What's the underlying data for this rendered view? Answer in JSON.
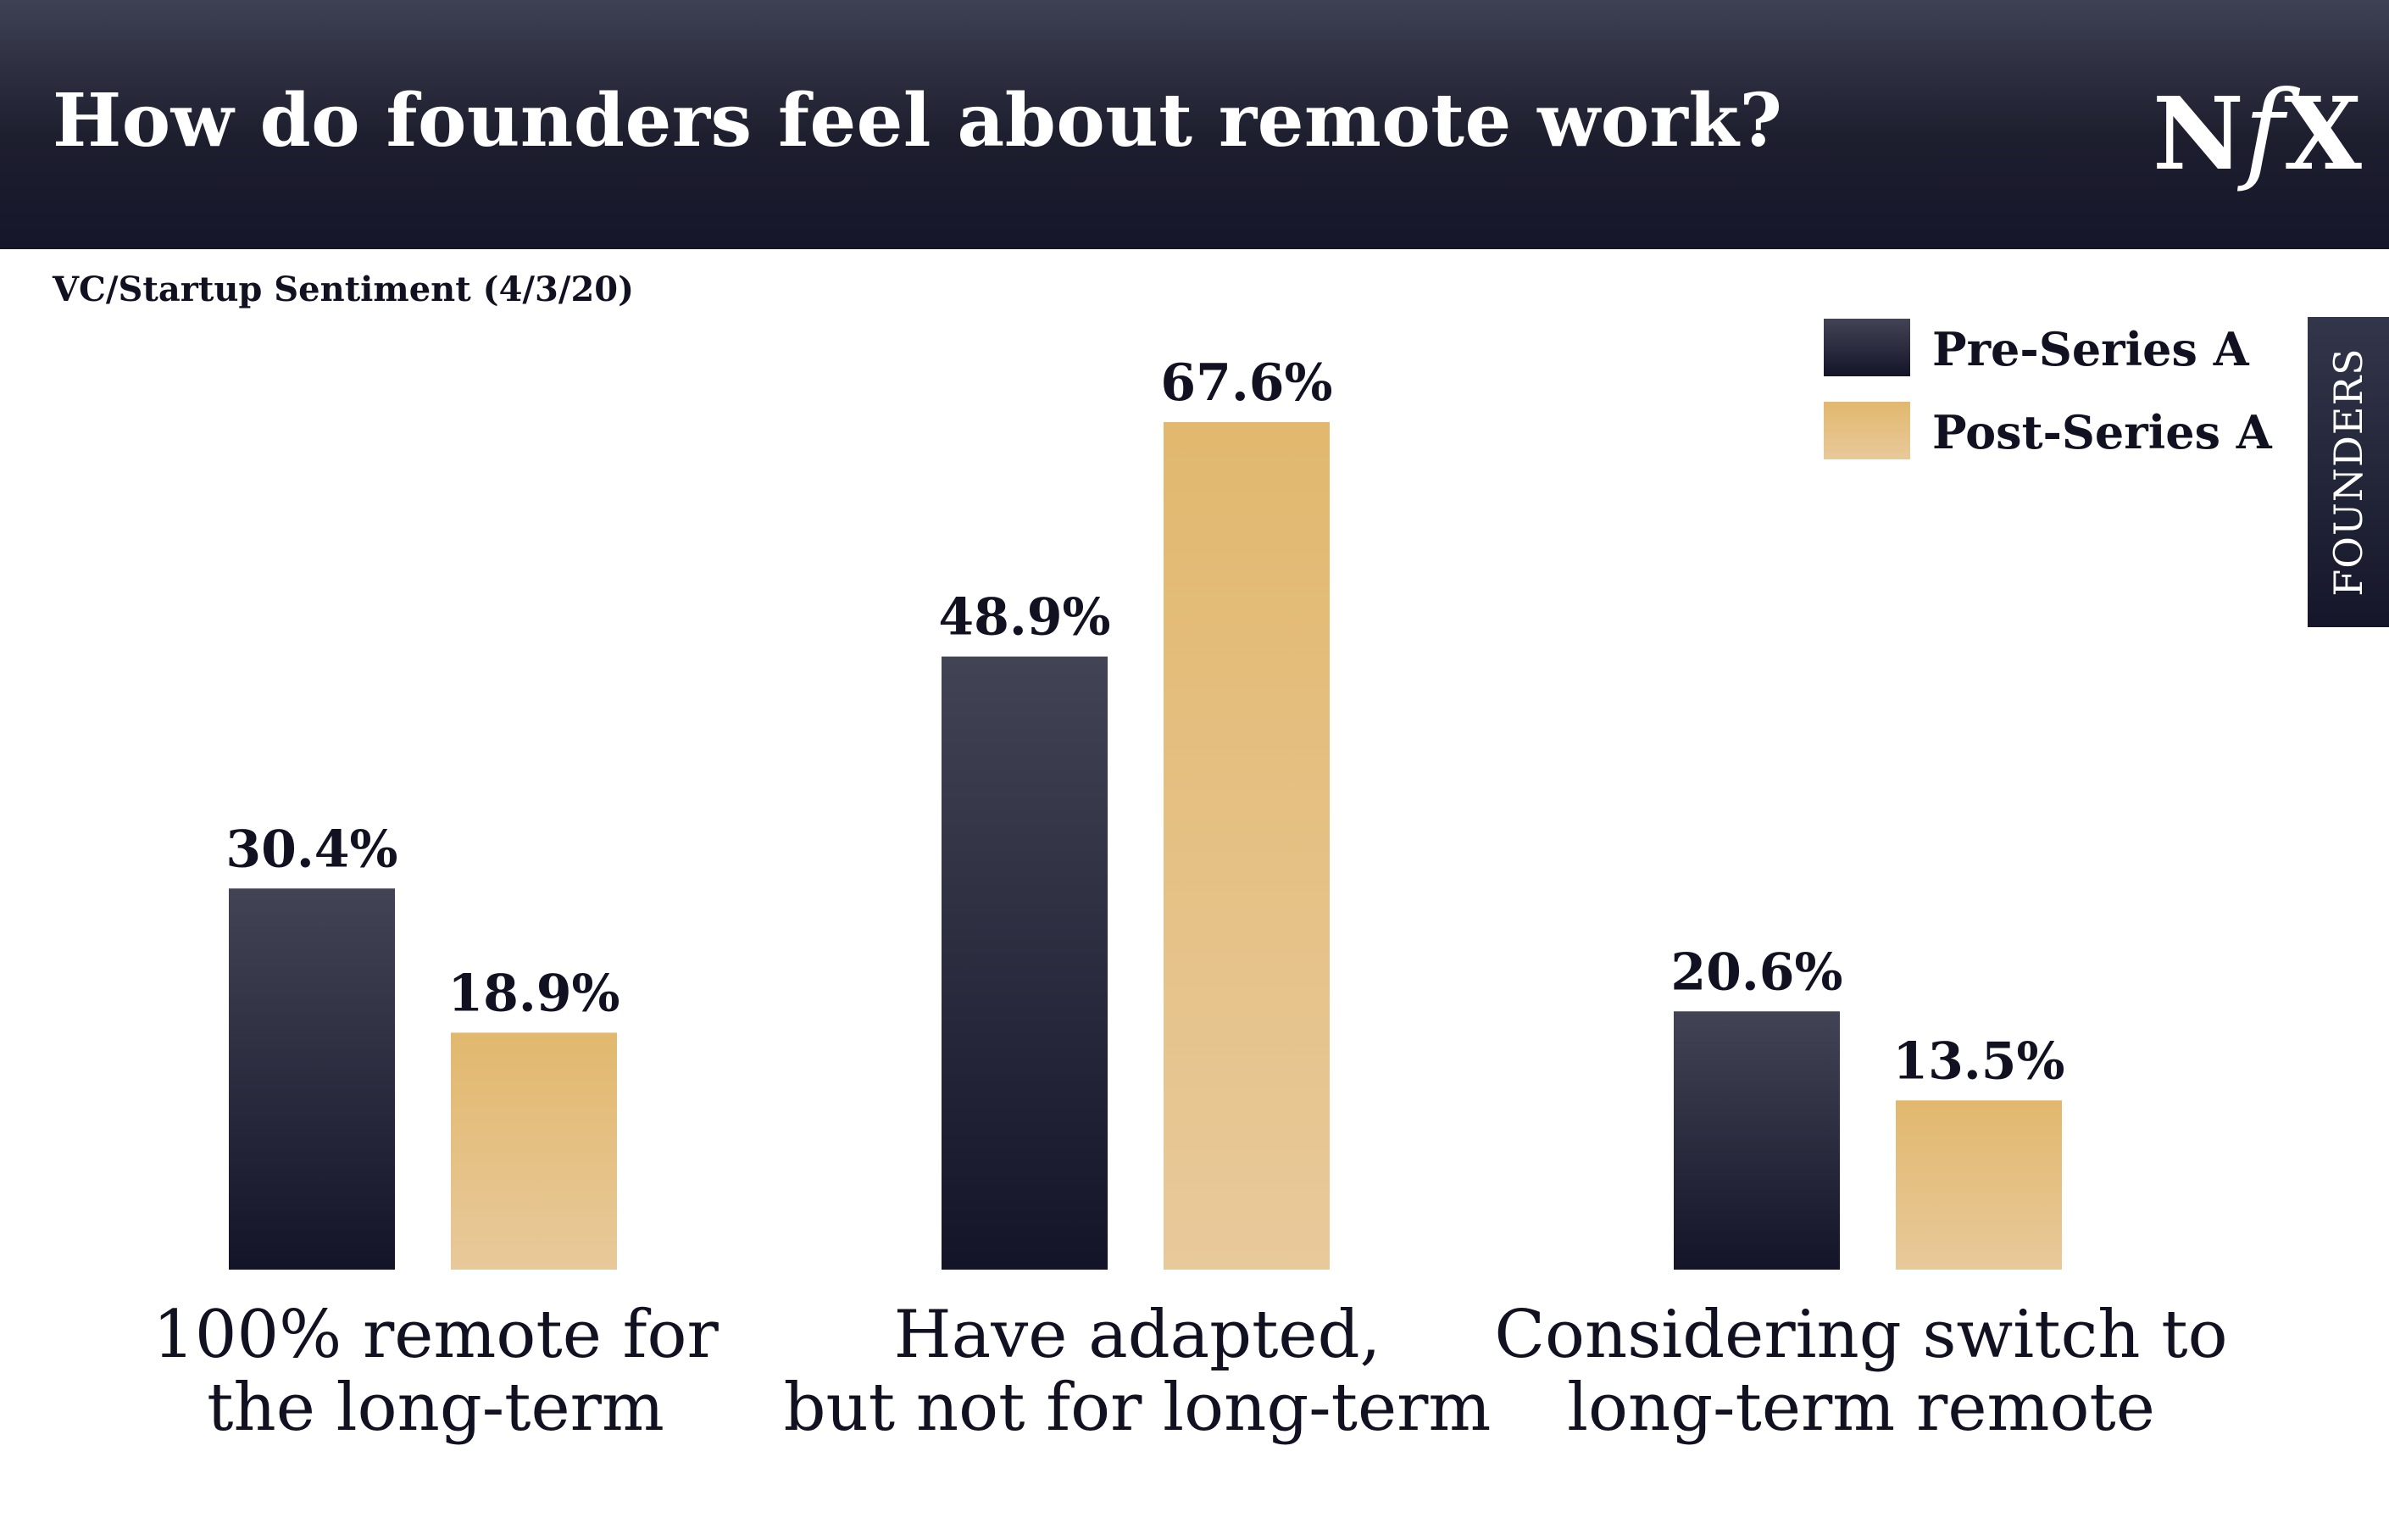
{
  "header": {
    "title": "How do founders feel about remote work?",
    "logo_text_left": "N",
    "logo_text_mid": "f",
    "logo_text_right": "X"
  },
  "subtitle": "VC/Startup Sentiment (4/3/20)",
  "side_tab": "FOUNDERS",
  "colors": {
    "pre_series_a_top": "#424455",
    "pre_series_a_bottom": "#141428",
    "post_series_a_top": "#e2b86e",
    "post_series_a_bottom": "#e8c99a",
    "header": "#1d1e2e"
  },
  "legend": [
    {
      "label": "Pre-Series A"
    },
    {
      "label": "Post-Series A"
    }
  ],
  "categories": [
    {
      "line1": "100% remote for",
      "line2": "the long-term"
    },
    {
      "line1": "Have adapted,",
      "line2": "but not for long-term"
    },
    {
      "line1": "Considering switch to",
      "line2": "long-term remote"
    }
  ],
  "chart_data": {
    "type": "bar",
    "title": "How do founders feel about remote work?",
    "subtitle": "VC/Startup Sentiment (4/3/20)",
    "categories": [
      "100% remote for the long-term",
      "Have adapted, but not for long-term",
      "Considering switch to long-term remote"
    ],
    "series": [
      {
        "name": "Pre-Series A",
        "values": [
          30.4,
          48.9,
          20.6
        ],
        "labels": [
          "30.4%",
          "48.9%",
          "20.6%"
        ]
      },
      {
        "name": "Post-Series A",
        "values": [
          18.9,
          67.6,
          13.5
        ],
        "labels": [
          "18.9%",
          "67.6%",
          "13.5%"
        ]
      }
    ],
    "ylim": [
      0,
      67.6
    ],
    "grid": false,
    "legend_position": "top-right"
  }
}
